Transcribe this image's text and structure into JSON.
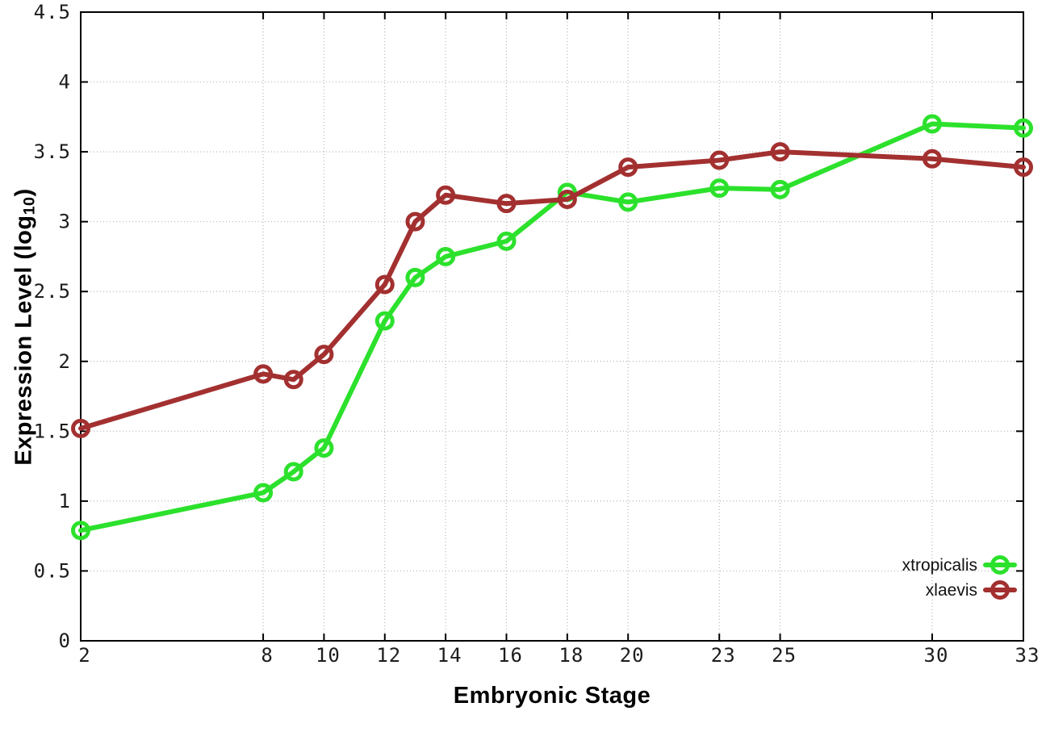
{
  "chart_data": {
    "type": "line",
    "title": "",
    "xlabel": "Embryonic Stage",
    "ylabel": "Expression Level (log10)",
    "ylabel_parts": {
      "main": "Expression Level (log",
      "sub": "10",
      "close": ")"
    },
    "xlim": [
      2,
      33
    ],
    "ylim": [
      0,
      4.5
    ],
    "x_ticks": [
      2,
      8,
      10,
      12,
      14,
      16,
      18,
      20,
      23,
      25,
      30,
      33
    ],
    "x_tick_labels": [
      "2",
      "8",
      "10",
      "12",
      "14",
      "16",
      "18",
      "20",
      "23",
      "25",
      "30",
      "33"
    ],
    "y_ticks": [
      0,
      0.5,
      1,
      1.5,
      2,
      2.5,
      3,
      3.5,
      4,
      4.5
    ],
    "y_tick_labels": [
      "0",
      "0.5",
      "1",
      "1.5",
      "2",
      "2.5",
      "3",
      "3.5",
      "4",
      "4.5"
    ],
    "grid": true,
    "legend_position": "bottom-right",
    "marker": "open-circle",
    "x": [
      2,
      8,
      9,
      10,
      12,
      13,
      14,
      16,
      18,
      20,
      23,
      25,
      30,
      33
    ],
    "series": [
      {
        "name": "xtropicalis",
        "color": "#2ce12c",
        "values": [
          0.79,
          1.06,
          1.21,
          1.38,
          2.29,
          2.6,
          2.75,
          2.86,
          3.21,
          3.14,
          3.24,
          3.23,
          3.7,
          3.67
        ]
      },
      {
        "name": "xlaevis",
        "color": "#a33030",
        "values": [
          1.52,
          1.91,
          1.87,
          2.05,
          2.55,
          3.0,
          3.19,
          3.13,
          3.16,
          3.39,
          3.44,
          3.5,
          3.45,
          3.39
        ]
      }
    ],
    "colors": {
      "background": "#ffffff",
      "axis": "#000000",
      "grid": "#b5b5b5",
      "tick_text": "#1c1c1c"
    }
  }
}
